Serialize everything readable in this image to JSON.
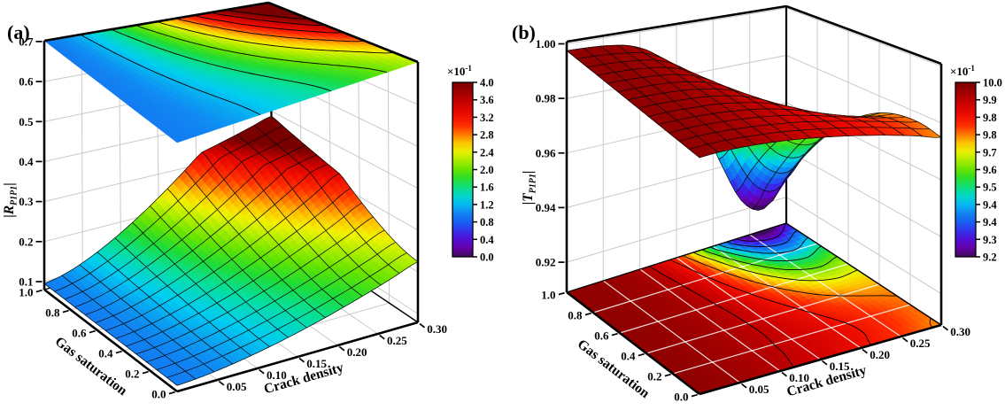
{
  "figure": {
    "panel_a_label": "(a)",
    "panel_b_label": "(b)"
  },
  "chart_data": [
    {
      "type": "3d_surface",
      "panel": "(a)",
      "title": "",
      "xlabel": "Crack density",
      "ylabel": "Gas saturation",
      "zlabel": "|R_P1P1|",
      "zlabel_parts": {
        "bar_left": "|",
        "letter": "R",
        "subscript": "P1P1",
        "bar_right": "|"
      },
      "x_crack_density": [
        0,
        0.03,
        0.06,
        0.09,
        0.12,
        0.15,
        0.18,
        0.21,
        0.24,
        0.27,
        0.3
      ],
      "y_gas_saturation": [
        0,
        0.1,
        0.2,
        0.3,
        0.4,
        0.5,
        0.6,
        0.7,
        0.8,
        0.9,
        1.0
      ],
      "z_values": [
        [
          0.095,
          0.0987,
          0.1057,
          0.1151,
          0.1264,
          0.1394,
          0.1539,
          0.1698,
          0.187,
          0.2054,
          0.225
        ],
        [
          0.095,
          0.0989,
          0.1063,
          0.1162,
          0.1282,
          0.1419,
          0.1572,
          0.174,
          0.1921,
          0.2117,
          0.2323
        ],
        [
          0.095,
          0.0993,
          0.1076,
          0.1185,
          0.1318,
          0.147,
          0.1639,
          0.1825,
          0.2026,
          0.2242,
          0.2471
        ],
        [
          0.095,
          0.0999,
          0.1092,
          0.1217,
          0.1366,
          0.1539,
          0.173,
          0.1941,
          0.2169,
          0.2414,
          0.2673
        ],
        [
          0.095,
          0.1006,
          0.1113,
          0.1255,
          0.1426,
          0.1623,
          0.1842,
          0.2083,
          0.2344,
          0.2624,
          0.292
        ],
        [
          0.095,
          0.1014,
          0.1136,
          0.1299,
          0.1496,
          0.1721,
          0.1972,
          0.2248,
          0.2547,
          0.2867,
          0.3207
        ],
        [
          0.095,
          0.1023,
          0.1163,
          0.1349,
          0.1574,
          0.1832,
          0.2119,
          0.2435,
          0.2776,
          0.3143,
          0.3531
        ],
        [
          0.095,
          0.1033,
          0.1193,
          0.1405,
          0.166,
          0.1954,
          0.2281,
          0.2641,
          0.3029,
          0.3447,
          0.3889
        ],
        [
          0.095,
          0.1044,
          0.1225,
          0.1465,
          0.1755,
          0.2087,
          0.2458,
          0.2865,
          0.3305,
          0.3778,
          0.4279
        ],
        [
          0.095,
          0.1056,
          0.126,
          0.153,
          0.1856,
          0.2231,
          0.2649,
          0.3107,
          0.3603,
          0.4136,
          0.47
        ],
        [
          0.095,
          0.1068,
          0.1297,
          0.16,
          0.1965,
          0.2385,
          0.2853,
          0.3366,
          0.3922,
          0.4518,
          0.515
        ]
      ],
      "z_tick_labels": [
        "0.1",
        "0.2",
        "0.3",
        "0.4",
        "0.5",
        "0.6",
        "0.7"
      ],
      "z_tick_values": [
        0.1,
        0.2,
        0.3,
        0.4,
        0.5,
        0.6,
        0.7
      ],
      "gas_tick_labels": [
        "1.0",
        "0.8",
        "0.6",
        "0.4",
        "0.2",
        "0.0"
      ],
      "gas_tick_values": [
        1.0,
        0.8,
        0.6,
        0.4,
        0.2,
        0.0
      ],
      "crack_tick_labels": [
        "0.05",
        "0.10",
        "0.15",
        "0.20",
        "0.25",
        "0.30"
      ],
      "crack_tick_values": [
        0.05,
        0.1,
        0.15,
        0.2,
        0.25,
        0.3
      ],
      "projection_plane": "top",
      "contour_levels": [
        0.12,
        0.16,
        0.2,
        0.24,
        0.28,
        0.32,
        0.36,
        0.4
      ],
      "colorbar": {
        "title_base": "×10",
        "title_exponent": "-1",
        "tick_labels": [
          "4.0",
          "3.6",
          "3.2",
          "2.8",
          "2.4",
          "2.0",
          "1.6",
          "1.2",
          "0.8",
          "0.4",
          "0.0"
        ],
        "vmin": 0.0,
        "vmax": 0.4
      },
      "grid": true,
      "legend_position": "right-colorbar"
    },
    {
      "type": "3d_surface",
      "panel": "(b)",
      "title": "",
      "xlabel": "Crack density",
      "ylabel": "Gas saturation",
      "zlabel": "|T_P1P1|",
      "zlabel_parts": {
        "bar_left": "|",
        "letter": "T",
        "subscript": "P1P1",
        "bar_right": "|"
      },
      "x_crack_density": [
        0,
        0.03,
        0.06,
        0.09,
        0.12,
        0.15,
        0.18,
        0.21,
        0.24,
        0.27,
        0.3
      ],
      "y_gas_saturation": [
        0,
        0.1,
        0.2,
        0.3,
        0.4,
        0.5,
        0.6,
        0.7,
        0.8,
        0.9,
        1.0
      ],
      "z_values": [
        [
          0.9975,
          0.9968,
          0.9955,
          0.9938,
          0.9918,
          0.9895,
          0.987,
          0.9843,
          0.9814,
          0.9783,
          0.975
        ],
        [
          0.9975,
          0.9969,
          0.9957,
          0.9941,
          0.9923,
          0.9901,
          0.9877,
          0.9851,
          0.9823,
          0.9793,
          0.9764
        ],
        [
          0.9975,
          0.9969,
          0.9958,
          0.9943,
          0.9925,
          0.9904,
          0.9878,
          0.9849,
          0.982,
          0.9792,
          0.9767
        ],
        [
          0.9975,
          0.997,
          0.996,
          0.9946,
          0.9928,
          0.9904,
          0.9873,
          0.9837,
          0.9803,
          0.9775,
          0.9758
        ],
        [
          0.9975,
          0.997,
          0.996,
          0.9948,
          0.9928,
          0.9901,
          0.9862,
          0.9815,
          0.9771,
          0.9744,
          0.9736
        ],
        [
          0.9975,
          0.9971,
          0.9962,
          0.9949,
          0.9928,
          0.9894,
          0.9843,
          0.9781,
          0.9724,
          0.9696,
          0.9699
        ],
        [
          0.9975,
          0.9971,
          0.9964,
          0.995,
          0.9926,
          0.9884,
          0.9818,
          0.9735,
          0.9661,
          0.9629,
          0.9648
        ],
        [
          0.9975,
          0.9972,
          0.9964,
          0.9951,
          0.9923,
          0.987,
          0.9784,
          0.9675,
          0.9581,
          0.9546,
          0.958
        ],
        [
          0.9975,
          0.9972,
          0.9965,
          0.9951,
          0.9918,
          0.9852,
          0.9742,
          0.9604,
          0.9484,
          0.9443,
          0.9498
        ],
        [
          0.9975,
          0.9972,
          0.9965,
          0.9951,
          0.9912,
          0.9832,
          0.9694,
          0.9517,
          0.9368,
          0.9321,
          0.9398
        ],
        [
          0.9975,
          0.9973,
          0.9967,
          0.995,
          0.9905,
          0.9806,
          0.9636,
          0.9419,
          0.9235,
          0.918,
          0.9282
        ]
      ],
      "z_tick_labels": [
        "0.92",
        "0.94",
        "0.96",
        "0.98",
        "1.00"
      ],
      "z_tick_values": [
        0.92,
        0.94,
        0.96,
        0.98,
        1.0
      ],
      "gas_tick_labels": [
        "1.0",
        "0.8",
        "0.6",
        "0.4",
        "0.2",
        "0.0"
      ],
      "gas_tick_values": [
        1.0,
        0.8,
        0.6,
        0.4,
        0.2,
        0.0
      ],
      "crack_tick_labels": [
        "0.05",
        "0.10",
        "0.15",
        "0.20",
        "0.25",
        "0.30"
      ],
      "crack_tick_values": [
        0.05,
        0.1,
        0.15,
        0.2,
        0.25,
        0.3
      ],
      "projection_plane": "floor",
      "contour_levels": [
        0.928,
        0.936,
        0.944,
        0.952,
        0.96,
        0.968,
        0.976,
        0.984,
        0.992
      ],
      "colorbar": {
        "title_base": "×10",
        "title_exponent": "-1",
        "tick_labels": [
          "10.0",
          "9.9",
          "9.8",
          "9.8",
          "9.7",
          "9.6",
          "9.5",
          "9.4",
          "9.4",
          "9.3",
          "9.2"
        ],
        "vmin": 0.92,
        "vmax": 1.0
      },
      "grid": true,
      "legend_position": "right-colorbar"
    }
  ]
}
